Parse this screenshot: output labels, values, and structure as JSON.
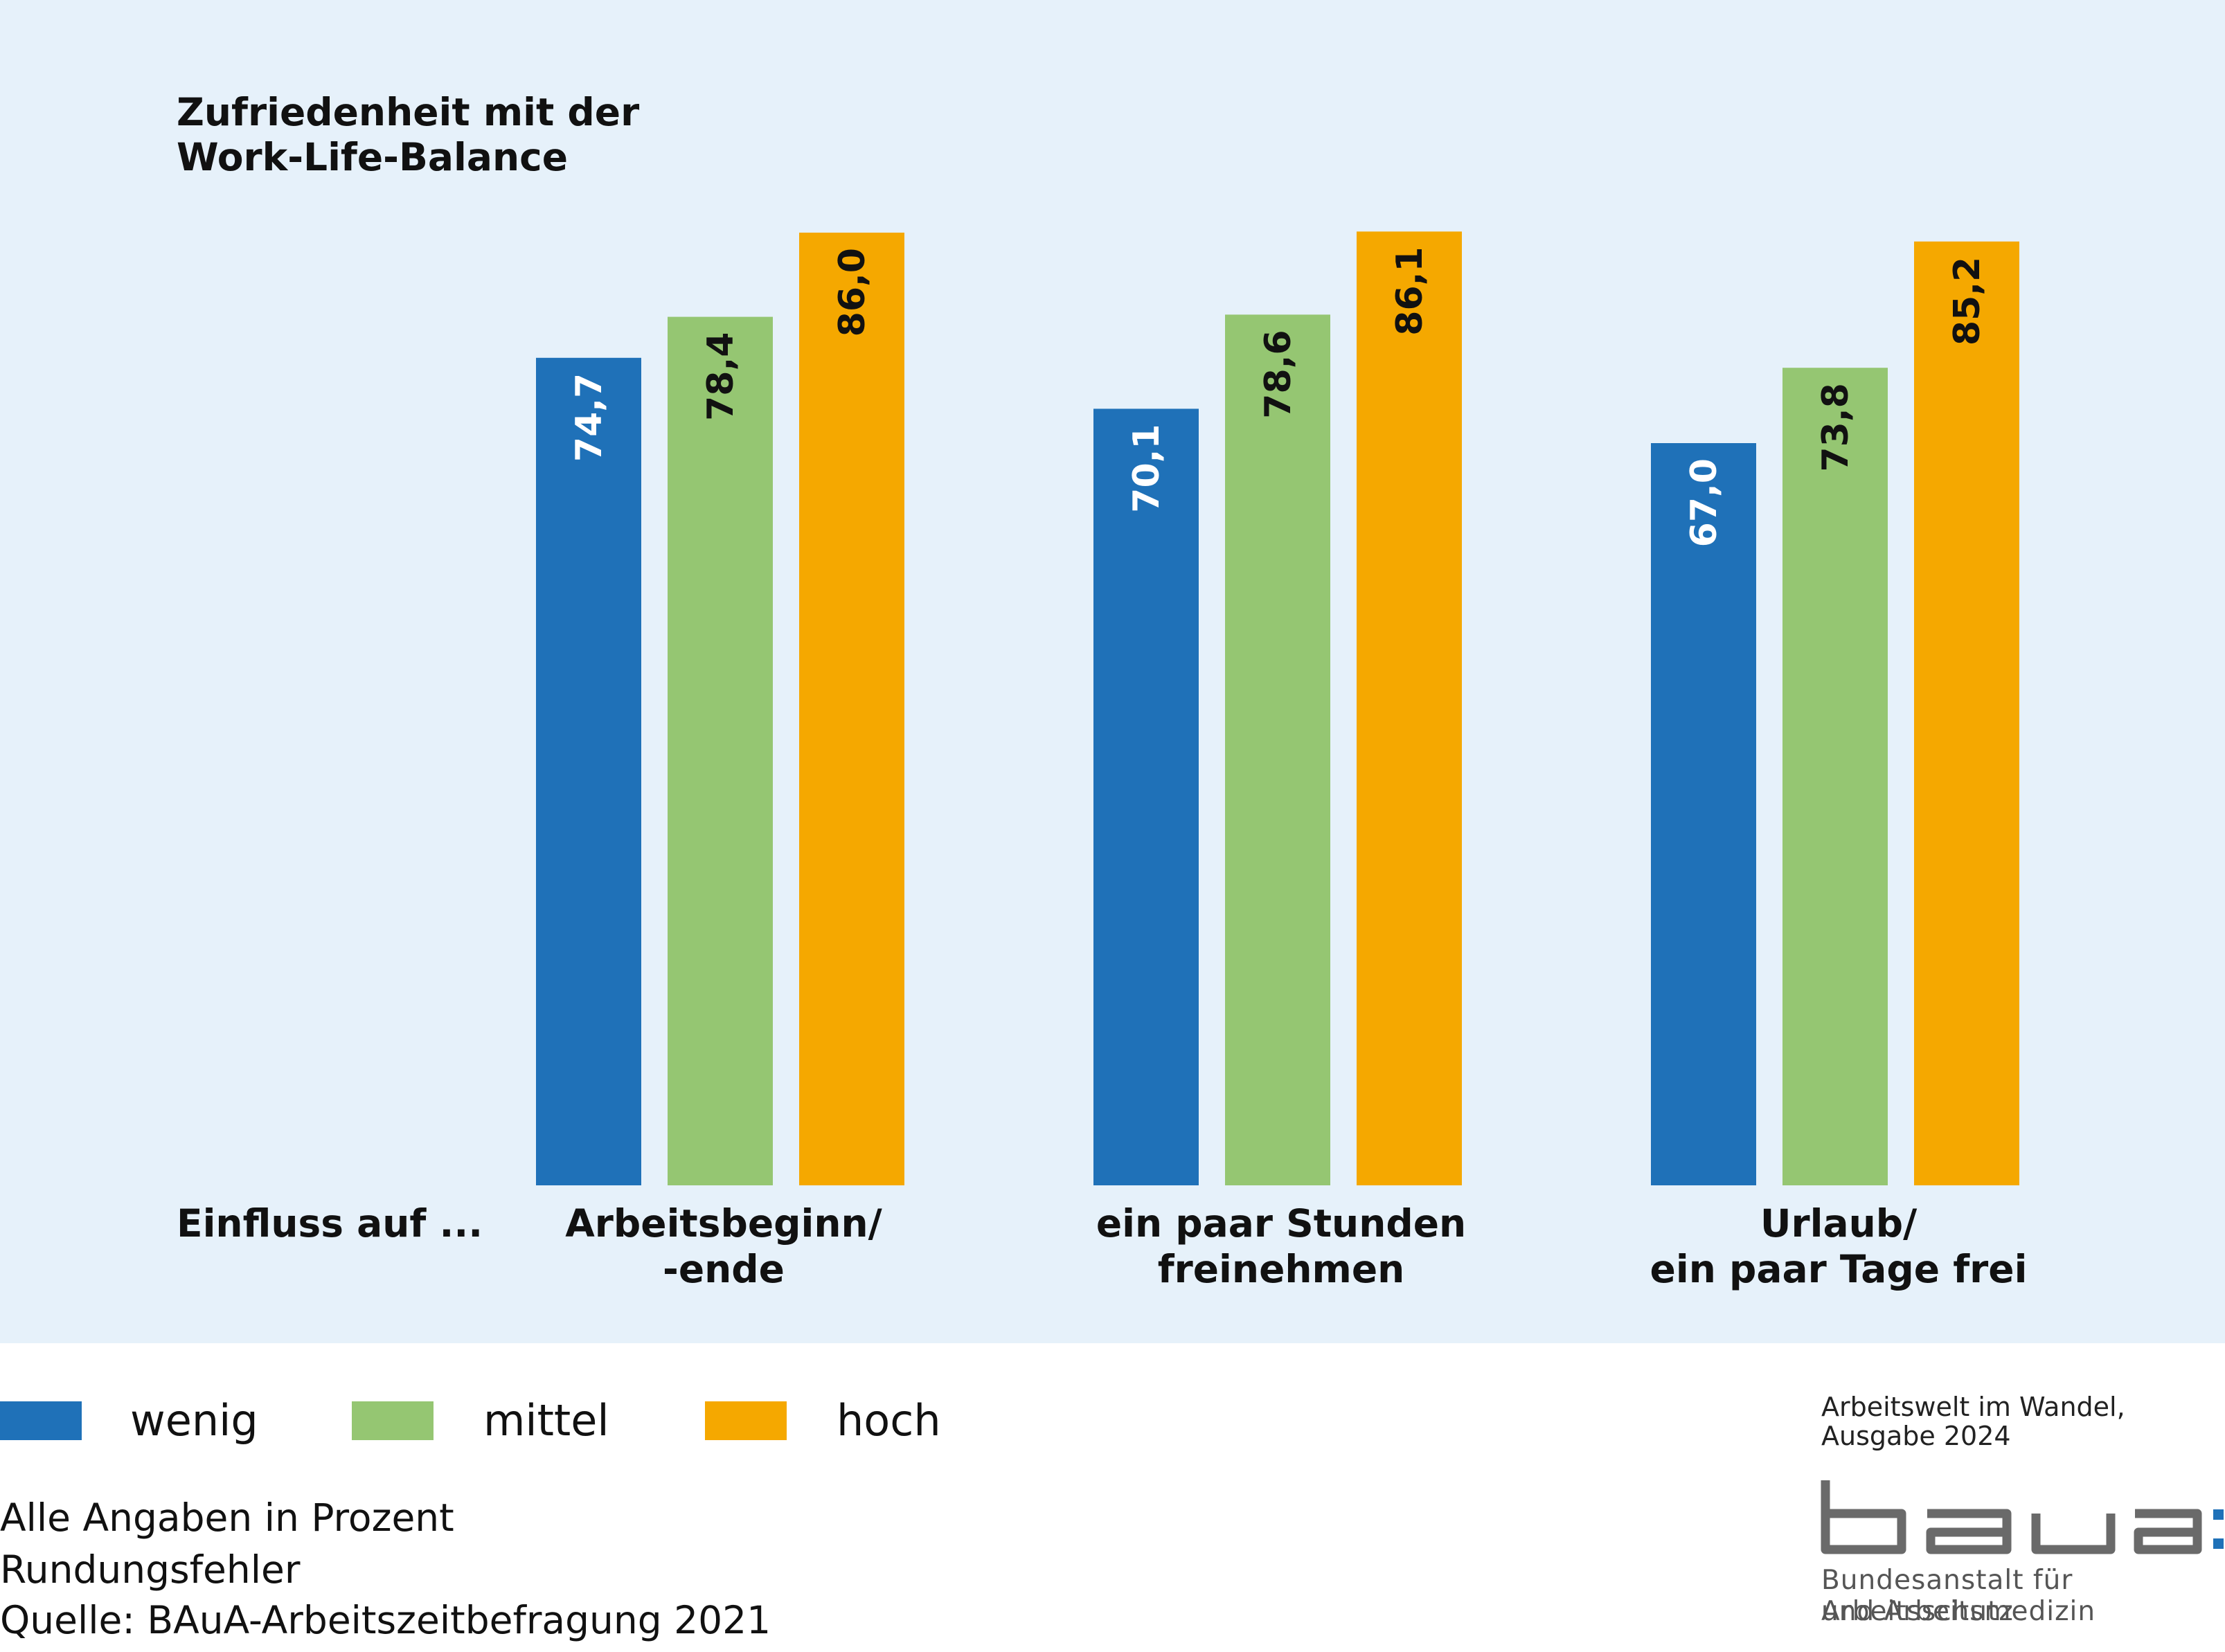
{
  "colors": {
    "panel": "#e6f1fa",
    "wenig": "#1f71b8",
    "mittel": "#95c672",
    "hoch": "#f5a800",
    "label_on_blue": "#ffffff",
    "label_on_other": "#111111"
  },
  "chart_data": {
    "type": "bar",
    "title": "Zufriedenheit mit der Work-Life-Balance",
    "title_lines": [
      "Zufriedenheit mit der",
      "Work-Life-Balance"
    ],
    "xlabel": "Einfluss auf ...",
    "ylabel": "",
    "ylim": [
      0,
      100
    ],
    "grid": false,
    "categories": [
      "Arbeitsbeginn/ -ende",
      "ein paar Stunden freinehmen",
      "Urlaub/ ein paar Tage frei"
    ],
    "category_lines": [
      [
        "Arbeitsbeginn/",
        "-ende"
      ],
      [
        "ein paar Stunden",
        "freinehmen"
      ],
      [
        "Urlaub/",
        "ein paar Tage frei"
      ]
    ],
    "series": [
      {
        "name": "wenig",
        "values": [
          74.7,
          70.1,
          67.0
        ],
        "labels": [
          "74,7",
          "70,1",
          "67,0"
        ]
      },
      {
        "name": "mittel",
        "values": [
          78.4,
          78.6,
          73.8
        ],
        "labels": [
          "78,4",
          "78,6",
          "73,8"
        ]
      },
      {
        "name": "hoch",
        "values": [
          86.0,
          86.1,
          85.2
        ],
        "labels": [
          "86,0",
          "86,1",
          "85,2"
        ]
      }
    ],
    "legend_position": "bottom-left"
  },
  "notes": [
    "Alle Angaben in Prozent",
    "Rundungsfehler",
    "Quelle: BAuA-Arbeitszeitbefragung 2021"
  ],
  "publication": [
    "Arbeitswelt im Wandel,",
    "Ausgabe 2024"
  ],
  "logo": {
    "wordmark": "baua:",
    "institution_lines": [
      "Bundesanstalt für Arbeitsschutz",
      "und Arbeitsmedizin"
    ]
  }
}
